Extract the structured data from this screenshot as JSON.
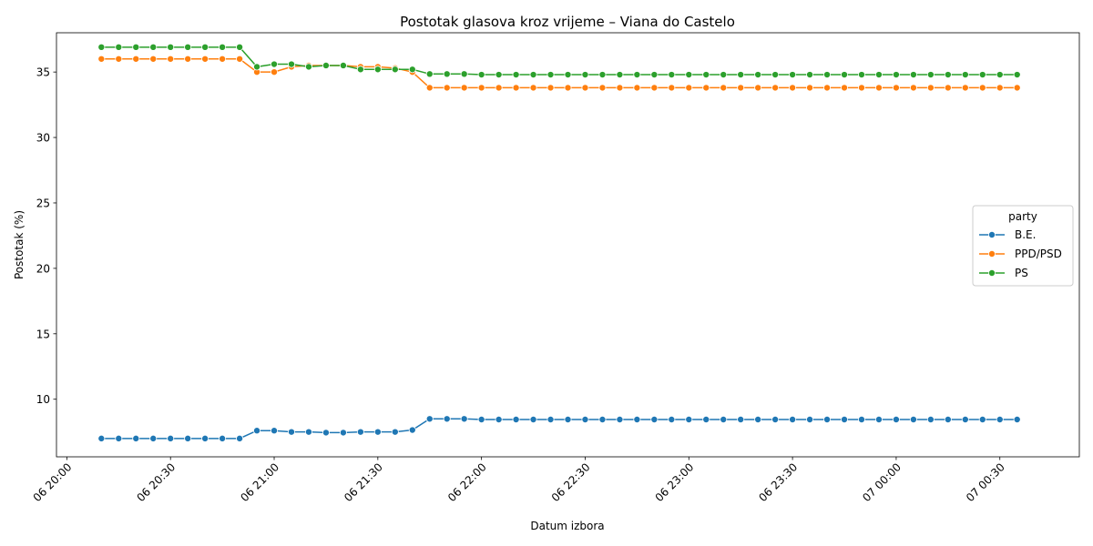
{
  "chart_data": {
    "type": "line",
    "title": "Postotak glasova kroz vrijeme – Viana do Castelo",
    "xlabel": "Datum izbora",
    "ylabel": "Postotak (%)",
    "x_ticks": [
      "06 20:00",
      "06 20:30",
      "06 21:00",
      "06 21:30",
      "06 22:00",
      "06 22:30",
      "06 23:00",
      "06 23:30",
      "07 00:00",
      "07 00:30"
    ],
    "x_tick_minutes": [
      0,
      30,
      60,
      90,
      120,
      150,
      180,
      210,
      240,
      270
    ],
    "x_minutes": [
      10,
      15,
      20,
      25,
      30,
      35,
      40,
      45,
      50,
      55,
      60,
      65,
      70,
      75,
      80,
      85,
      90,
      95,
      100,
      105,
      110,
      115,
      120,
      125,
      130,
      135,
      140,
      145,
      150,
      155,
      160,
      165,
      170,
      175,
      180,
      185,
      190,
      195,
      200,
      205,
      210,
      215,
      220,
      225,
      230,
      235,
      240,
      245,
      250,
      255,
      260,
      265,
      270,
      275
    ],
    "xlim": [
      -3,
      293
    ],
    "y_ticks": [
      10,
      15,
      20,
      25,
      30,
      35
    ],
    "ylim": [
      5.6,
      38.0
    ],
    "legend_title": "party",
    "legend_position": "center-right",
    "series": [
      {
        "name": "B.E.",
        "color": "#1f77b4",
        "values": [
          7.0,
          7.0,
          7.0,
          7.0,
          7.0,
          7.0,
          7.0,
          7.0,
          7.0,
          7.6,
          7.6,
          7.5,
          7.5,
          7.45,
          7.45,
          7.5,
          7.5,
          7.5,
          7.65,
          8.5,
          8.5,
          8.5,
          8.45,
          8.45,
          8.45,
          8.45,
          8.45,
          8.45,
          8.45,
          8.45,
          8.45,
          8.45,
          8.45,
          8.45,
          8.45,
          8.45,
          8.45,
          8.45,
          8.45,
          8.45,
          8.45,
          8.45,
          8.45,
          8.45,
          8.45,
          8.45,
          8.45,
          8.45,
          8.45,
          8.45,
          8.45,
          8.45,
          8.45,
          8.45
        ]
      },
      {
        "name": "PPD/PSD",
        "color": "#ff7f0e",
        "values": [
          36.0,
          36.0,
          36.0,
          36.0,
          36.0,
          36.0,
          36.0,
          36.0,
          36.0,
          35.0,
          35.0,
          35.4,
          35.5,
          35.5,
          35.5,
          35.4,
          35.4,
          35.3,
          35.0,
          33.8,
          33.8,
          33.8,
          33.8,
          33.8,
          33.8,
          33.8,
          33.8,
          33.8,
          33.8,
          33.8,
          33.8,
          33.8,
          33.8,
          33.8,
          33.8,
          33.8,
          33.8,
          33.8,
          33.8,
          33.8,
          33.8,
          33.8,
          33.8,
          33.8,
          33.8,
          33.8,
          33.8,
          33.8,
          33.8,
          33.8,
          33.8,
          33.8,
          33.8,
          33.8
        ]
      },
      {
        "name": "PS",
        "color": "#2ca02c",
        "values": [
          36.9,
          36.9,
          36.9,
          36.9,
          36.9,
          36.9,
          36.9,
          36.9,
          36.9,
          35.4,
          35.6,
          35.6,
          35.4,
          35.5,
          35.5,
          35.2,
          35.2,
          35.2,
          35.2,
          34.85,
          34.85,
          34.85,
          34.8,
          34.8,
          34.8,
          34.8,
          34.8,
          34.8,
          34.8,
          34.8,
          34.8,
          34.8,
          34.8,
          34.8,
          34.8,
          34.8,
          34.8,
          34.8,
          34.8,
          34.8,
          34.8,
          34.8,
          34.8,
          34.8,
          34.8,
          34.8,
          34.8,
          34.8,
          34.8,
          34.8,
          34.8,
          34.8,
          34.8,
          34.8
        ]
      }
    ]
  }
}
